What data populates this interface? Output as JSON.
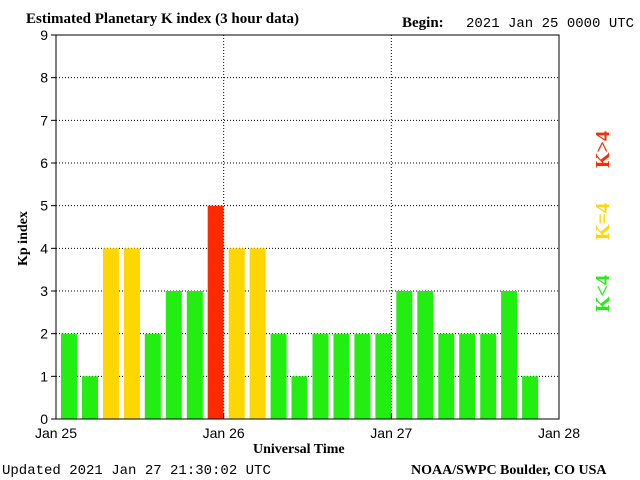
{
  "header": {
    "title": "Estimated Planetary K index (3 hour data)",
    "begin_label": "Begin:",
    "begin_value": "2021 Jan 25 0000 UTC"
  },
  "footer": {
    "updated": "Updated 2021 Jan 27 21:30:02 UTC",
    "credit": "NOAA/SWPC Boulder, CO USA"
  },
  "key": {
    "less": "K<4",
    "equal": "K=4",
    "greater": "K>4"
  },
  "colors": {
    "green": "#22ee11",
    "yellow": "#ffd700",
    "red": "#ff2a00",
    "grid": "#000000"
  },
  "chart_data": {
    "type": "bar",
    "title": "Estimated Planetary K index (3 hour data)",
    "xlabel": "Universal Time",
    "ylabel": "Kp index",
    "ylim": [
      0,
      9
    ],
    "yticks": [
      0,
      1,
      2,
      3,
      4,
      5,
      6,
      7,
      8,
      9
    ],
    "xticks": [
      "Jan 25",
      "Jan 26",
      "Jan 27",
      "Jan 28"
    ],
    "interval_hours": 3,
    "values": [
      2,
      1,
      4,
      4,
      2,
      3,
      3,
      5,
      4,
      4,
      2,
      1,
      2,
      2,
      2,
      2,
      3,
      3,
      2,
      2,
      2,
      3,
      1
    ],
    "grid": "dotted",
    "legend_position": "right"
  }
}
